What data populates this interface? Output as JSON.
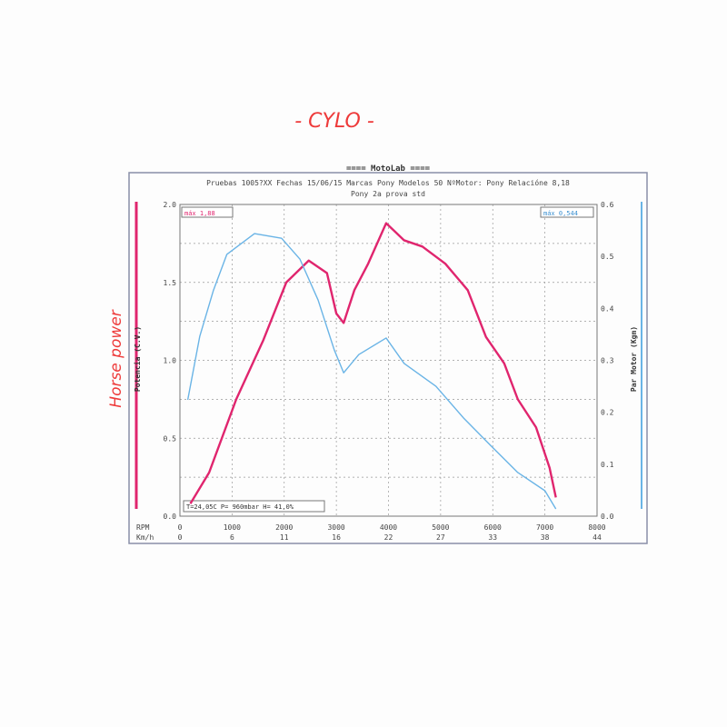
{
  "handwritten": {
    "title": "- CYLO -",
    "left_note": "Horse power"
  },
  "chart_data": {
    "type": "line",
    "banner": "==== MotoLab ====",
    "title": "Pruebas 1005?XX  Fechas 15/06/15  Marcas Pony  Modelos 50  NºMotor: Pony  Relacióne 8,18",
    "subtitle": "Pony 2a prova std",
    "ylabel": "Potencia (C.V.)",
    "y2label": "Par Motor (Kgm)",
    "xlabel": "RPM",
    "x2label": "Km/h",
    "xlim": [
      0,
      8000
    ],
    "ylim": [
      0,
      2.0
    ],
    "y2lim": [
      0,
      0.6
    ],
    "x_ticks": [
      "0",
      "1000",
      "2000",
      "3000",
      "4000",
      "5000",
      "6000",
      "7000",
      "8000"
    ],
    "x2_ticks": [
      "0",
      "6",
      "11",
      "16",
      "22",
      "27",
      "33",
      "38",
      "44"
    ],
    "y_ticks": [
      "0.0",
      "0.5",
      "1.0",
      "1.5",
      "2.0"
    ],
    "y2_ticks": [
      "0.0",
      "0.1",
      "0.2",
      "0.3",
      "0.4",
      "0.5",
      "0.6"
    ],
    "grid": true,
    "max_power_label": "máx  1,88",
    "max_torque_label": "máx  0,544",
    "conditions": "T=24,05C P=  960mbar H= 41,0%",
    "series": [
      {
        "axis": "left",
        "color": "#e0256e",
        "x": [
          200,
          560,
          1080,
          1600,
          2040,
          2470,
          2820,
          3000,
          3140,
          3345,
          3610,
          3955,
          4300,
          4650,
          5090,
          5520,
          5870,
          6220,
          6480,
          6830,
          7090,
          7210
        ],
        "y": [
          0.08,
          0.28,
          0.75,
          1.13,
          1.5,
          1.64,
          1.56,
          1.3,
          1.24,
          1.45,
          1.62,
          1.88,
          1.77,
          1.73,
          1.62,
          1.45,
          1.15,
          0.98,
          0.75,
          0.57,
          0.31,
          0.12
        ]
      },
      {
        "axis": "right",
        "color": "#6ab4e6",
        "x": [
          150,
          380,
          640,
          900,
          1430,
          1950,
          2300,
          2650,
          2960,
          3140,
          3430,
          3955,
          4300,
          4910,
          5440,
          5960,
          6480,
          7000,
          7210
        ],
        "y": [
          0.224,
          0.346,
          0.434,
          0.504,
          0.544,
          0.535,
          0.495,
          0.416,
          0.32,
          0.276,
          0.311,
          0.343,
          0.294,
          0.25,
          0.189,
          0.136,
          0.084,
          0.049,
          0.014
        ]
      }
    ]
  }
}
